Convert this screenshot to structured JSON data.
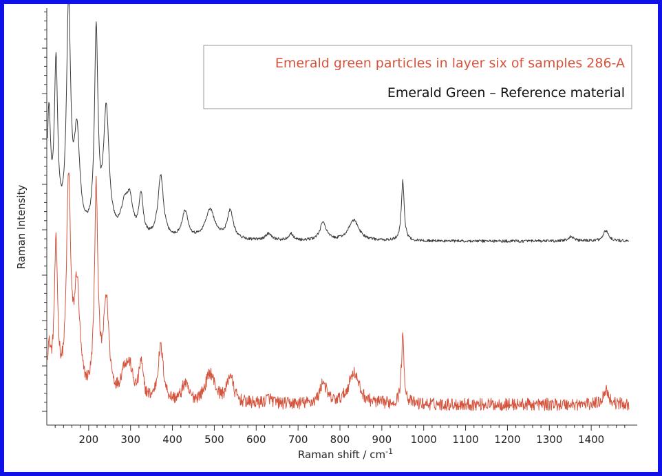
{
  "chart_data": {
    "type": "line",
    "title": "",
    "xlabel": "Raman shift / cm",
    "xlabel_superscript": "-1",
    "ylabel": "Raman Intensity",
    "xlim": [
      100,
      1500
    ],
    "x_ticks": [
      200,
      300,
      400,
      500,
      600,
      700,
      800,
      900,
      1000,
      1100,
      1200,
      1300,
      1400
    ],
    "y_ticks_shown": false,
    "grid": false,
    "legend_position": "top-right",
    "series": [
      {
        "name": "Emerald green particles in layer six of samples 286-A",
        "color": "#d4533c",
        "offset": 0,
        "baseline": 0.3,
        "noise": 0.55,
        "peaks": [
          {
            "x": 105,
            "h": 4.0,
            "w": 6
          },
          {
            "x": 122,
            "h": 13.0,
            "w": 5
          },
          {
            "x": 152,
            "h": 18.5,
            "w": 6
          },
          {
            "x": 172,
            "h": 9.5,
            "w": 8
          },
          {
            "x": 218,
            "h": 18.0,
            "w": 5
          },
          {
            "x": 242,
            "h": 8.5,
            "w": 8
          },
          {
            "x": 285,
            "h": 2.3,
            "w": 10
          },
          {
            "x": 298,
            "h": 2.4,
            "w": 9
          },
          {
            "x": 325,
            "h": 3.2,
            "w": 6
          },
          {
            "x": 372,
            "h": 4.8,
            "w": 8
          },
          {
            "x": 430,
            "h": 1.6,
            "w": 9
          },
          {
            "x": 490,
            "h": 2.6,
            "w": 14
          },
          {
            "x": 538,
            "h": 2.4,
            "w": 9
          },
          {
            "x": 630,
            "h": 0.5,
            "w": 9
          },
          {
            "x": 760,
            "h": 1.9,
            "w": 9
          },
          {
            "x": 833,
            "h": 2.8,
            "w": 15
          },
          {
            "x": 950,
            "h": 5.8,
            "w": 4
          },
          {
            "x": 1435,
            "h": 1.3,
            "w": 8
          }
        ]
      },
      {
        "name": "Emerald Green – Reference material",
        "color": "#3a3a3a",
        "offset": 14.5,
        "baseline": 0.1,
        "noise": 0.12,
        "peaks": [
          {
            "x": 105,
            "h": 10.5,
            "w": 5
          },
          {
            "x": 122,
            "h": 14.5,
            "w": 5
          },
          {
            "x": 152,
            "h": 19.5,
            "w": 6
          },
          {
            "x": 172,
            "h": 8.5,
            "w": 8
          },
          {
            "x": 218,
            "h": 17.5,
            "w": 5
          },
          {
            "x": 242,
            "h": 11.0,
            "w": 8
          },
          {
            "x": 285,
            "h": 2.3,
            "w": 10
          },
          {
            "x": 298,
            "h": 3.0,
            "w": 9
          },
          {
            "x": 325,
            "h": 3.6,
            "w": 6
          },
          {
            "x": 372,
            "h": 5.5,
            "w": 8
          },
          {
            "x": 430,
            "h": 2.4,
            "w": 9
          },
          {
            "x": 490,
            "h": 2.6,
            "w": 14
          },
          {
            "x": 538,
            "h": 2.5,
            "w": 9
          },
          {
            "x": 630,
            "h": 0.6,
            "w": 9
          },
          {
            "x": 683,
            "h": 0.6,
            "w": 7
          },
          {
            "x": 760,
            "h": 1.6,
            "w": 9
          },
          {
            "x": 833,
            "h": 1.8,
            "w": 15
          },
          {
            "x": 950,
            "h": 5.3,
            "w": 4
          },
          {
            "x": 1352,
            "h": 0.4,
            "w": 8
          },
          {
            "x": 1435,
            "h": 0.9,
            "w": 8
          }
        ]
      }
    ]
  }
}
